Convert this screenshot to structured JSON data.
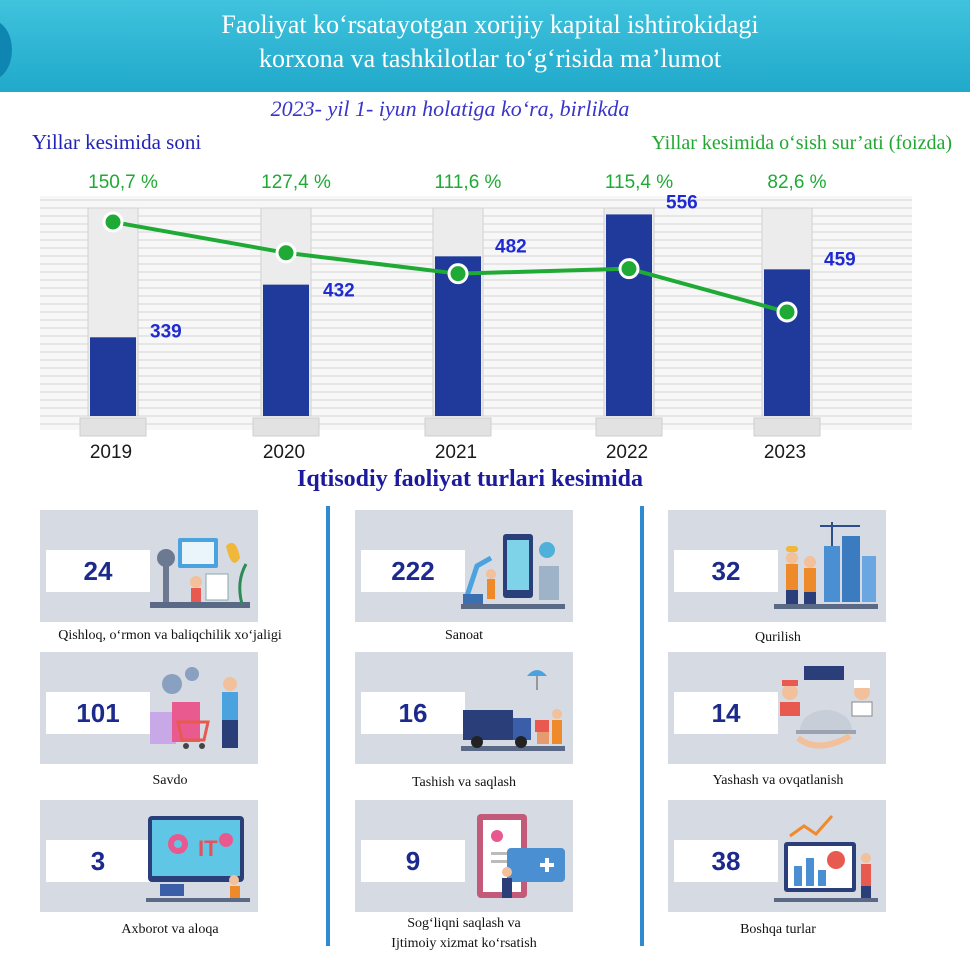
{
  "header": {
    "title_line1": "Faoliyat ko‘rsatayotgan xorijiy kapital ishtirokidagi",
    "title_line2": "korxona va tashkilotlar to‘g‘risida ma’lumot"
  },
  "subtitle": "2023- yil 1- iyun holatiga ko‘ra, birlikda",
  "chart_labels": {
    "left": "Yillar kesimida soni",
    "right": "Yillar kesimida o‘sish sur’ati (foizda)"
  },
  "chart_data": {
    "type": "bar",
    "categories": [
      "2019",
      "2020",
      "2021",
      "2022",
      "2023"
    ],
    "series": [
      {
        "type": "bar",
        "values": [
          339,
          432,
          482,
          556,
          459
        ],
        "labels": [
          "339",
          "432",
          "482",
          "556",
          "459"
        ],
        "color": "#1f3a9a"
      },
      {
        "type": "line",
        "values": [
          150.7,
          127.4,
          111.6,
          115.4,
          82.6
        ],
        "labels": [
          "150,7 %",
          "127,4 %",
          "111,6 %",
          "115,4 %",
          "82,6 %"
        ],
        "color": "#1faa35"
      }
    ],
    "grid": true,
    "legend": "none"
  },
  "section_title": "Iqtisodiy faoliyat turlari kesimida",
  "sectors": [
    {
      "value": "24",
      "name": "Qishloq, o‘rmon va baliqchilik xo‘jaligi",
      "icon": "agriculture-illustration"
    },
    {
      "value": "222",
      "name": "Sanoat",
      "icon": "industry-illustration"
    },
    {
      "value": "32",
      "name": "Qurilish",
      "icon": "construction-illustration"
    },
    {
      "value": "101",
      "name": "Savdo",
      "icon": "trade-illustration"
    },
    {
      "value": "16",
      "name": "Tashish va saqlash",
      "icon": "transport-illustration"
    },
    {
      "value": "14",
      "name": "Yashash va ovqatlanish",
      "icon": "hospitality-illustration"
    },
    {
      "value": "3",
      "name": "Axborot va aloqa",
      "icon": "it-illustration"
    },
    {
      "value": "9",
      "name_line1": "Sog‘liqni saqlash va",
      "name_line2": "Ijtimoiy xizmat ko‘rsatish",
      "icon": "healthcare-illustration"
    },
    {
      "value": "38",
      "name": "Boshqa turlar",
      "icon": "other-illustration"
    }
  ],
  "colors": {
    "accent": "#22aacc",
    "bar": "#1f3a9a",
    "line": "#1faa35",
    "bar_label": "#1f2bd0"
  }
}
